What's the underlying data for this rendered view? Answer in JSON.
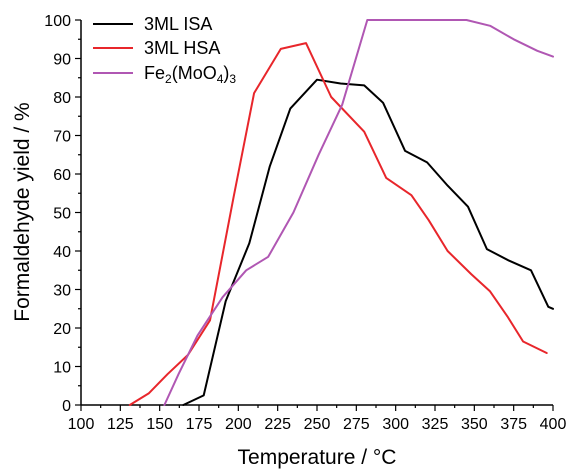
{
  "chart_data": {
    "type": "line",
    "title": "",
    "xlabel": "Temperature / °C",
    "ylabel": "Formaldehyde yield / %",
    "xlim": [
      100,
      400
    ],
    "ylim": [
      0,
      100
    ],
    "xticks": [
      100,
      125,
      150,
      175,
      200,
      225,
      250,
      275,
      300,
      325,
      350,
      375,
      400
    ],
    "yticks": [
      0,
      10,
      20,
      30,
      40,
      50,
      60,
      70,
      80,
      90,
      100
    ],
    "legend_position": "top-left",
    "grid": false,
    "series": [
      {
        "name": "3ML ISA",
        "legend_main": "3ML ISA",
        "color": "#000000",
        "points": [
          [
            165,
            0
          ],
          [
            178,
            2.5
          ],
          [
            192,
            27
          ],
          [
            207,
            42
          ],
          [
            220,
            62
          ],
          [
            233,
            77
          ],
          [
            250,
            84.5
          ],
          [
            265,
            83.5
          ],
          [
            280,
            83
          ],
          [
            292,
            78.5
          ],
          [
            306,
            66
          ],
          [
            320,
            63
          ],
          [
            333,
            57
          ],
          [
            346,
            51.5
          ],
          [
            358,
            40.5
          ],
          [
            372,
            37.5
          ],
          [
            386,
            35
          ],
          [
            397,
            25.5
          ],
          [
            400,
            25
          ]
        ]
      },
      {
        "name": "3ML HSA",
        "legend_main": "3ML HSA",
        "color": "#e8262b",
        "points": [
          [
            131,
            0
          ],
          [
            143,
            3
          ],
          [
            155,
            8
          ],
          [
            168,
            13
          ],
          [
            182,
            22
          ],
          [
            197,
            54
          ],
          [
            210,
            81
          ],
          [
            227,
            92.5
          ],
          [
            243,
            94
          ],
          [
            259,
            80
          ],
          [
            280,
            71
          ],
          [
            294,
            59
          ],
          [
            310,
            54.5
          ],
          [
            321,
            48
          ],
          [
            333,
            40
          ],
          [
            348,
            34
          ],
          [
            360,
            29.5
          ],
          [
            371,
            23
          ],
          [
            381,
            16.5
          ],
          [
            396,
            13.5
          ]
        ]
      },
      {
        "name": "Fe2(MoO4)3",
        "legend_main": "Fe",
        "legend_sub1": "2",
        "legend_mid": "(MoO",
        "legend_sub2": "4",
        "legend_end": ")",
        "legend_sub3": "3",
        "color": "#b057b3",
        "points": [
          [
            153,
            0
          ],
          [
            162,
            8
          ],
          [
            174,
            18
          ],
          [
            190,
            28
          ],
          [
            205,
            35
          ],
          [
            219,
            38.5
          ],
          [
            235,
            50
          ],
          [
            251,
            65
          ],
          [
            266,
            78
          ],
          [
            282,
            100
          ],
          [
            345,
            100
          ],
          [
            360,
            98.5
          ],
          [
            375,
            95
          ],
          [
            390,
            92
          ],
          [
            400,
            90.5
          ]
        ]
      }
    ]
  }
}
